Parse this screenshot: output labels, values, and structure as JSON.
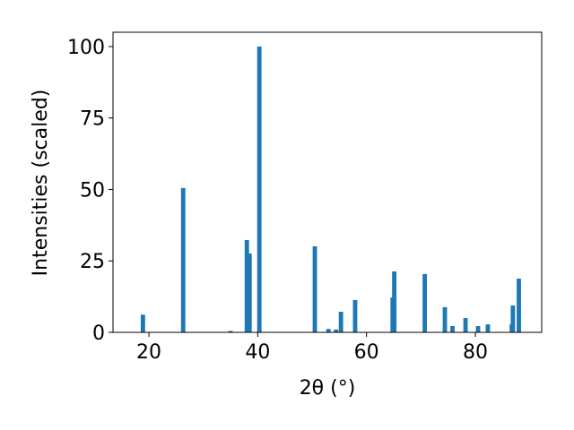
{
  "chart_data": {
    "type": "bar",
    "xlabel": "2θ (°)",
    "ylabel": "Intensities (scaled)",
    "x": [
      18.9,
      26.3,
      35.0,
      38.0,
      38.5,
      40.3,
      50.5,
      53.0,
      54.4,
      55.3,
      57.9,
      64.8,
      65.1,
      70.7,
      74.4,
      75.8,
      78.2,
      80.5,
      82.3,
      86.7,
      86.9,
      88.0
    ],
    "values": [
      6.2,
      50.5,
      0.5,
      32.3,
      27.6,
      100,
      30.1,
      1.2,
      1.0,
      7.2,
      11.3,
      12.2,
      21.3,
      20.4,
      8.8,
      2.2,
      5.0,
      2.2,
      2.8,
      2.8,
      9.4,
      18.8
    ],
    "color": "#1f77b4",
    "xlim": [
      13.4,
      92.2
    ],
    "ylim": [
      0,
      105
    ],
    "xticks": [
      20,
      40,
      60,
      80
    ],
    "yticks": [
      0,
      25,
      50,
      75,
      100
    ]
  }
}
